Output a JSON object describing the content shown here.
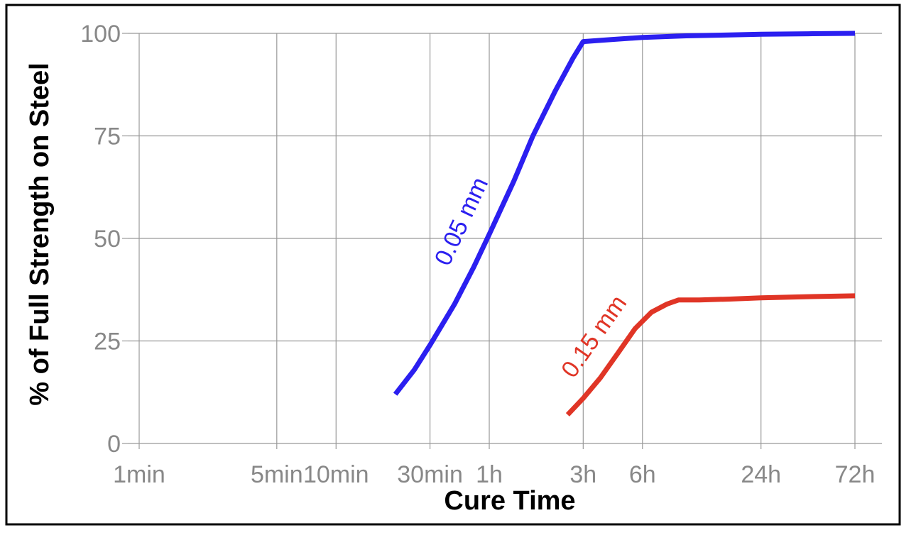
{
  "chart_data": {
    "type": "line",
    "xlabel": "Cure Time",
    "ylabel": "% of Full Strength on Steel",
    "x_scale": "log",
    "x_unit": "minutes",
    "xlim": [
      1,
      4320
    ],
    "ylim": [
      0,
      100
    ],
    "grid": true,
    "legend": "none",
    "x_ticks": [
      {
        "value": 1,
        "label": "1min"
      },
      {
        "value": 5,
        "label": "5min"
      },
      {
        "value": 10,
        "label": "10min"
      },
      {
        "value": 30,
        "label": "30min"
      },
      {
        "value": 60,
        "label": "1h"
      },
      {
        "value": 180,
        "label": "3h"
      },
      {
        "value": 360,
        "label": "6h"
      },
      {
        "value": 1440,
        "label": "24h"
      },
      {
        "value": 4320,
        "label": "72h"
      }
    ],
    "y_ticks": [
      0,
      25,
      50,
      75,
      100
    ],
    "series": [
      {
        "name": "0.05 mm",
        "color": "#2b1ff0",
        "x": [
          20,
          25,
          30,
          40,
          50,
          60,
          80,
          100,
          130,
          160,
          180,
          250,
          360,
          600,
          1000,
          1440,
          2500,
          4320
        ],
        "y": [
          12,
          18,
          24,
          34,
          43,
          51,
          64,
          75,
          86,
          94,
          98,
          98.5,
          99,
          99.4,
          99.6,
          99.8,
          99.9,
          100
        ]
      },
      {
        "name": "0.15 mm",
        "color": "#e03526",
        "x": [
          150,
          180,
          220,
          270,
          330,
          400,
          480,
          550,
          700,
          1000,
          1440,
          2500,
          4320
        ],
        "y": [
          7,
          11,
          16,
          22,
          28,
          32,
          34,
          35,
          35,
          35.2,
          35.5,
          35.8,
          36
        ]
      }
    ]
  }
}
